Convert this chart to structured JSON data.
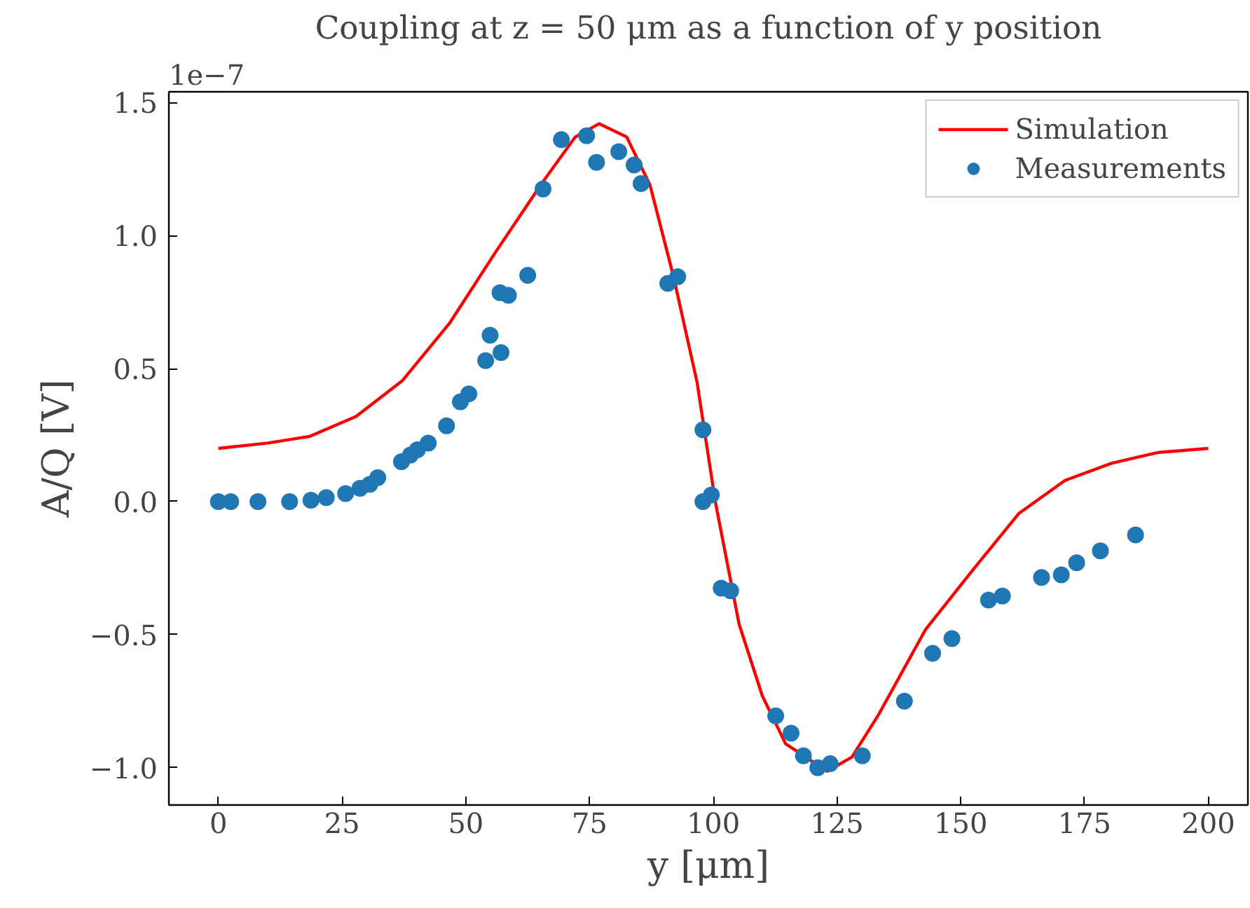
{
  "chart_data": {
    "type": "scatter",
    "title": "Coupling at z = 50 μm as a function of y position",
    "xlabel": "y [μm]",
    "ylabel": "A/Q [V]",
    "annotations": [
      "1e−7"
    ],
    "xlim": [
      -10,
      208
    ],
    "ylim": [
      -1.14,
      1.54
    ],
    "xticks": [
      0,
      25,
      50,
      75,
      100,
      125,
      150,
      175,
      200
    ],
    "yticks": [
      {
        "value": -1.0,
        "label": "−1.0"
      },
      {
        "value": -0.5,
        "label": "−0.5"
      },
      {
        "value": 0,
        "label": "0.0"
      },
      {
        "value": 0.5,
        "label": "0.5"
      },
      {
        "value": 1.0,
        "label": "1.0"
      },
      {
        "value": 1.5,
        "label": "1.5"
      }
    ],
    "grid": false,
    "legend": "top right",
    "series": [
      {
        "name": "Simulation",
        "type": "line",
        "color": "#ff0000",
        "marker": "none",
        "line_style": "solid",
        "x": [
          0,
          10,
          18.4,
          27.8,
          37.2,
          46.7,
          56.1,
          65.5,
          72.1,
          76.9,
          82.5,
          87.2,
          91.9,
          96.7,
          100.4,
          105.2,
          109.9,
          114.6,
          123,
          128,
          133.4,
          142.9,
          152.3,
          161.7,
          171.1,
          180.6,
          190,
          200
        ],
        "values": [
          0.2,
          0.22,
          0.245,
          0.32,
          0.455,
          0.67,
          0.94,
          1.2,
          1.37,
          1.42,
          1.37,
          1.19,
          0.85,
          0.45,
          0.0,
          -0.46,
          -0.73,
          -0.91,
          -1.013,
          -0.96,
          -0.8,
          -0.48,
          -0.26,
          -0.045,
          0.08,
          0.145,
          0.185,
          0.2
        ]
      },
      {
        "name": "Measurements",
        "type": "scatter",
        "color": "#1f77b4",
        "marker": "circle",
        "x": [
          0,
          2.5,
          8,
          14.4,
          18.7,
          21.8,
          25.7,
          28.6,
          30.6,
          32.2,
          37,
          38.8,
          40.2,
          42.4,
          46.1,
          48.9,
          50.6,
          54,
          54.9,
          56.9,
          57.1,
          58.6,
          62.5,
          65.6,
          69.3,
          74.4,
          76.4,
          80.9,
          84,
          85.4,
          90.8,
          92.8,
          97.9,
          97.9,
          99.6,
          101.6,
          103.5,
          112.6,
          115.7,
          118.2,
          121.1,
          123.6,
          130.1,
          138.6,
          144.3,
          148.2,
          155.6,
          158.4,
          166.3,
          170.3,
          173.4,
          178.2,
          185.3
        ],
        "values": [
          0,
          0,
          0,
          0,
          0.005,
          0.015,
          0.03,
          0.05,
          0.065,
          0.09,
          0.15,
          0.175,
          0.195,
          0.22,
          0.285,
          0.375,
          0.405,
          0.53,
          0.625,
          0.785,
          0.56,
          0.775,
          0.85,
          1.175,
          1.36,
          1.375,
          1.275,
          1.315,
          1.265,
          1.195,
          0.82,
          0.845,
          0.27,
          0,
          0.025,
          -0.325,
          -0.335,
          -0.805,
          -0.87,
          -0.955,
          -1.0,
          -0.985,
          -0.955,
          -0.75,
          -0.57,
          -0.515,
          -0.37,
          -0.355,
          -0.285,
          -0.275,
          -0.23,
          -0.185,
          -0.125
        ]
      }
    ]
  }
}
